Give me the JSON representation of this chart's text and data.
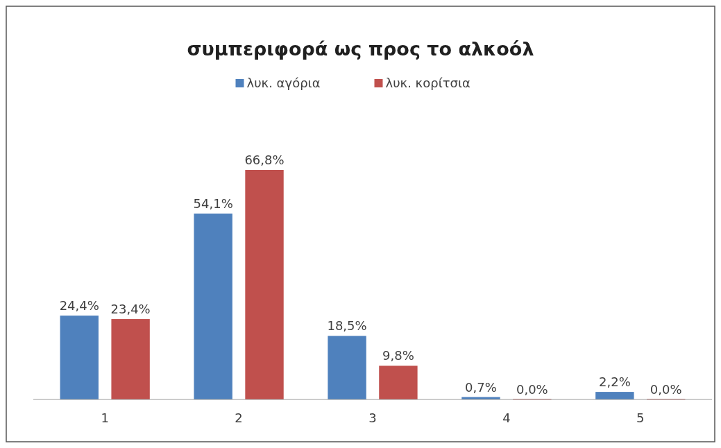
{
  "chart_data": {
    "type": "bar",
    "title": "συμπεριφορά ως προς το αλκοόλ",
    "categories": [
      "1",
      "2",
      "3",
      "4",
      "5"
    ],
    "series": [
      {
        "name": "λυκ. αγόρια",
        "color": "#4f81bd",
        "values": [
          24.4,
          54.1,
          18.5,
          0.7,
          2.2
        ],
        "value_labels": [
          "24,4%",
          "54,1%",
          "18,5%",
          "0,7%",
          "2,2%"
        ]
      },
      {
        "name": "λυκ. κορίτσια",
        "color": "#c0504d",
        "values": [
          23.4,
          66.8,
          9.8,
          0.0,
          0.0
        ],
        "value_labels": [
          "23,4%",
          "66,8%",
          "9,8%",
          "0,0%",
          "0,0%"
        ]
      }
    ],
    "legend": "top"
  }
}
